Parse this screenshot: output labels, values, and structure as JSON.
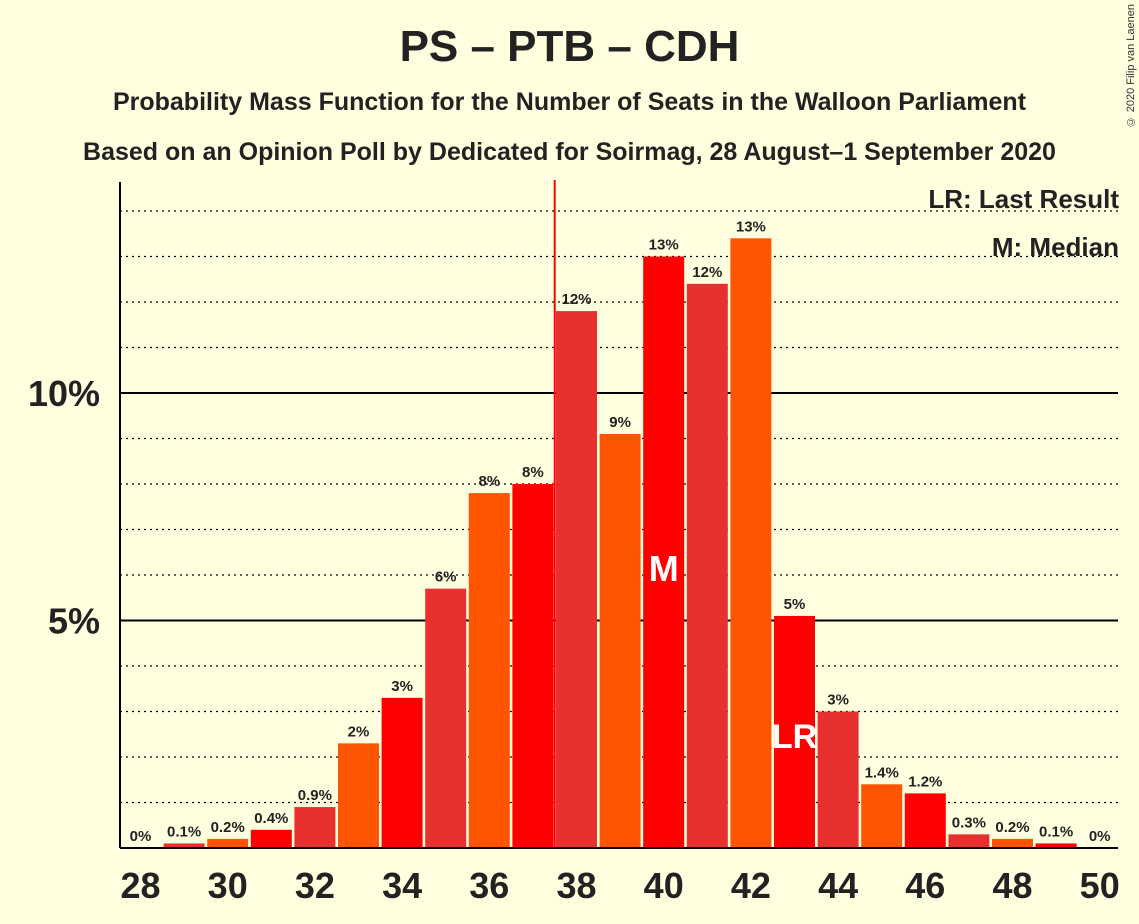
{
  "header": {
    "title": "PS – PTB – CDH",
    "subtitle1": "Probability Mass Function for the Number of Seats in the Walloon Parliament",
    "subtitle2": "Based on an Opinion Poll by Dedicated for Soirmag, 28 August–1 September 2020"
  },
  "copyright": "© 2020 Filip van Laenen",
  "legend": {
    "lr": "LR: Last Result",
    "m": "M: Median"
  },
  "chart_data": {
    "type": "bar",
    "x": [
      28,
      29,
      30,
      31,
      32,
      33,
      34,
      35,
      36,
      37,
      38,
      39,
      40,
      41,
      42,
      43,
      44,
      45,
      46,
      47,
      48,
      49,
      50
    ],
    "values": [
      0,
      0.1,
      0.2,
      0.4,
      0.9,
      2.3,
      3.3,
      5.7,
      7.8,
      8.0,
      11.8,
      9.1,
      13.0,
      12.4,
      13.4,
      5.1,
      3.0,
      1.4,
      1.2,
      0.3,
      0.2,
      0.1,
      0
    ],
    "labels": [
      "0%",
      "0.1%",
      "0.2%",
      "0.4%",
      "0.9%",
      "2%",
      "3%",
      "6%",
      "8%",
      "8%",
      "12%",
      "9%",
      "13%",
      "12%",
      "13%",
      "5%",
      "3%",
      "1.4%",
      "1.2%",
      "0.3%",
      "0.2%",
      "0.1%",
      "0%"
    ],
    "x_ticks": [
      "28",
      "30",
      "32",
      "34",
      "36",
      "38",
      "40",
      "42",
      "44",
      "46",
      "48",
      "50"
    ],
    "y_ticks": [
      {
        "value": 5,
        "label": "5%"
      },
      {
        "value": 10,
        "label": "10%"
      }
    ],
    "ylim": [
      0,
      14.6
    ],
    "majority_line_x": 37.5,
    "median": {
      "x": 40,
      "label": "M"
    },
    "last_result": {
      "x": 43,
      "label": "LR"
    },
    "colors": [
      "#FF0000",
      "#E8302E",
      "#FF5500"
    ],
    "majority_line_color": "#FF0000",
    "grid": "dotted minor every 1%, solid major at 5% and 10%"
  }
}
